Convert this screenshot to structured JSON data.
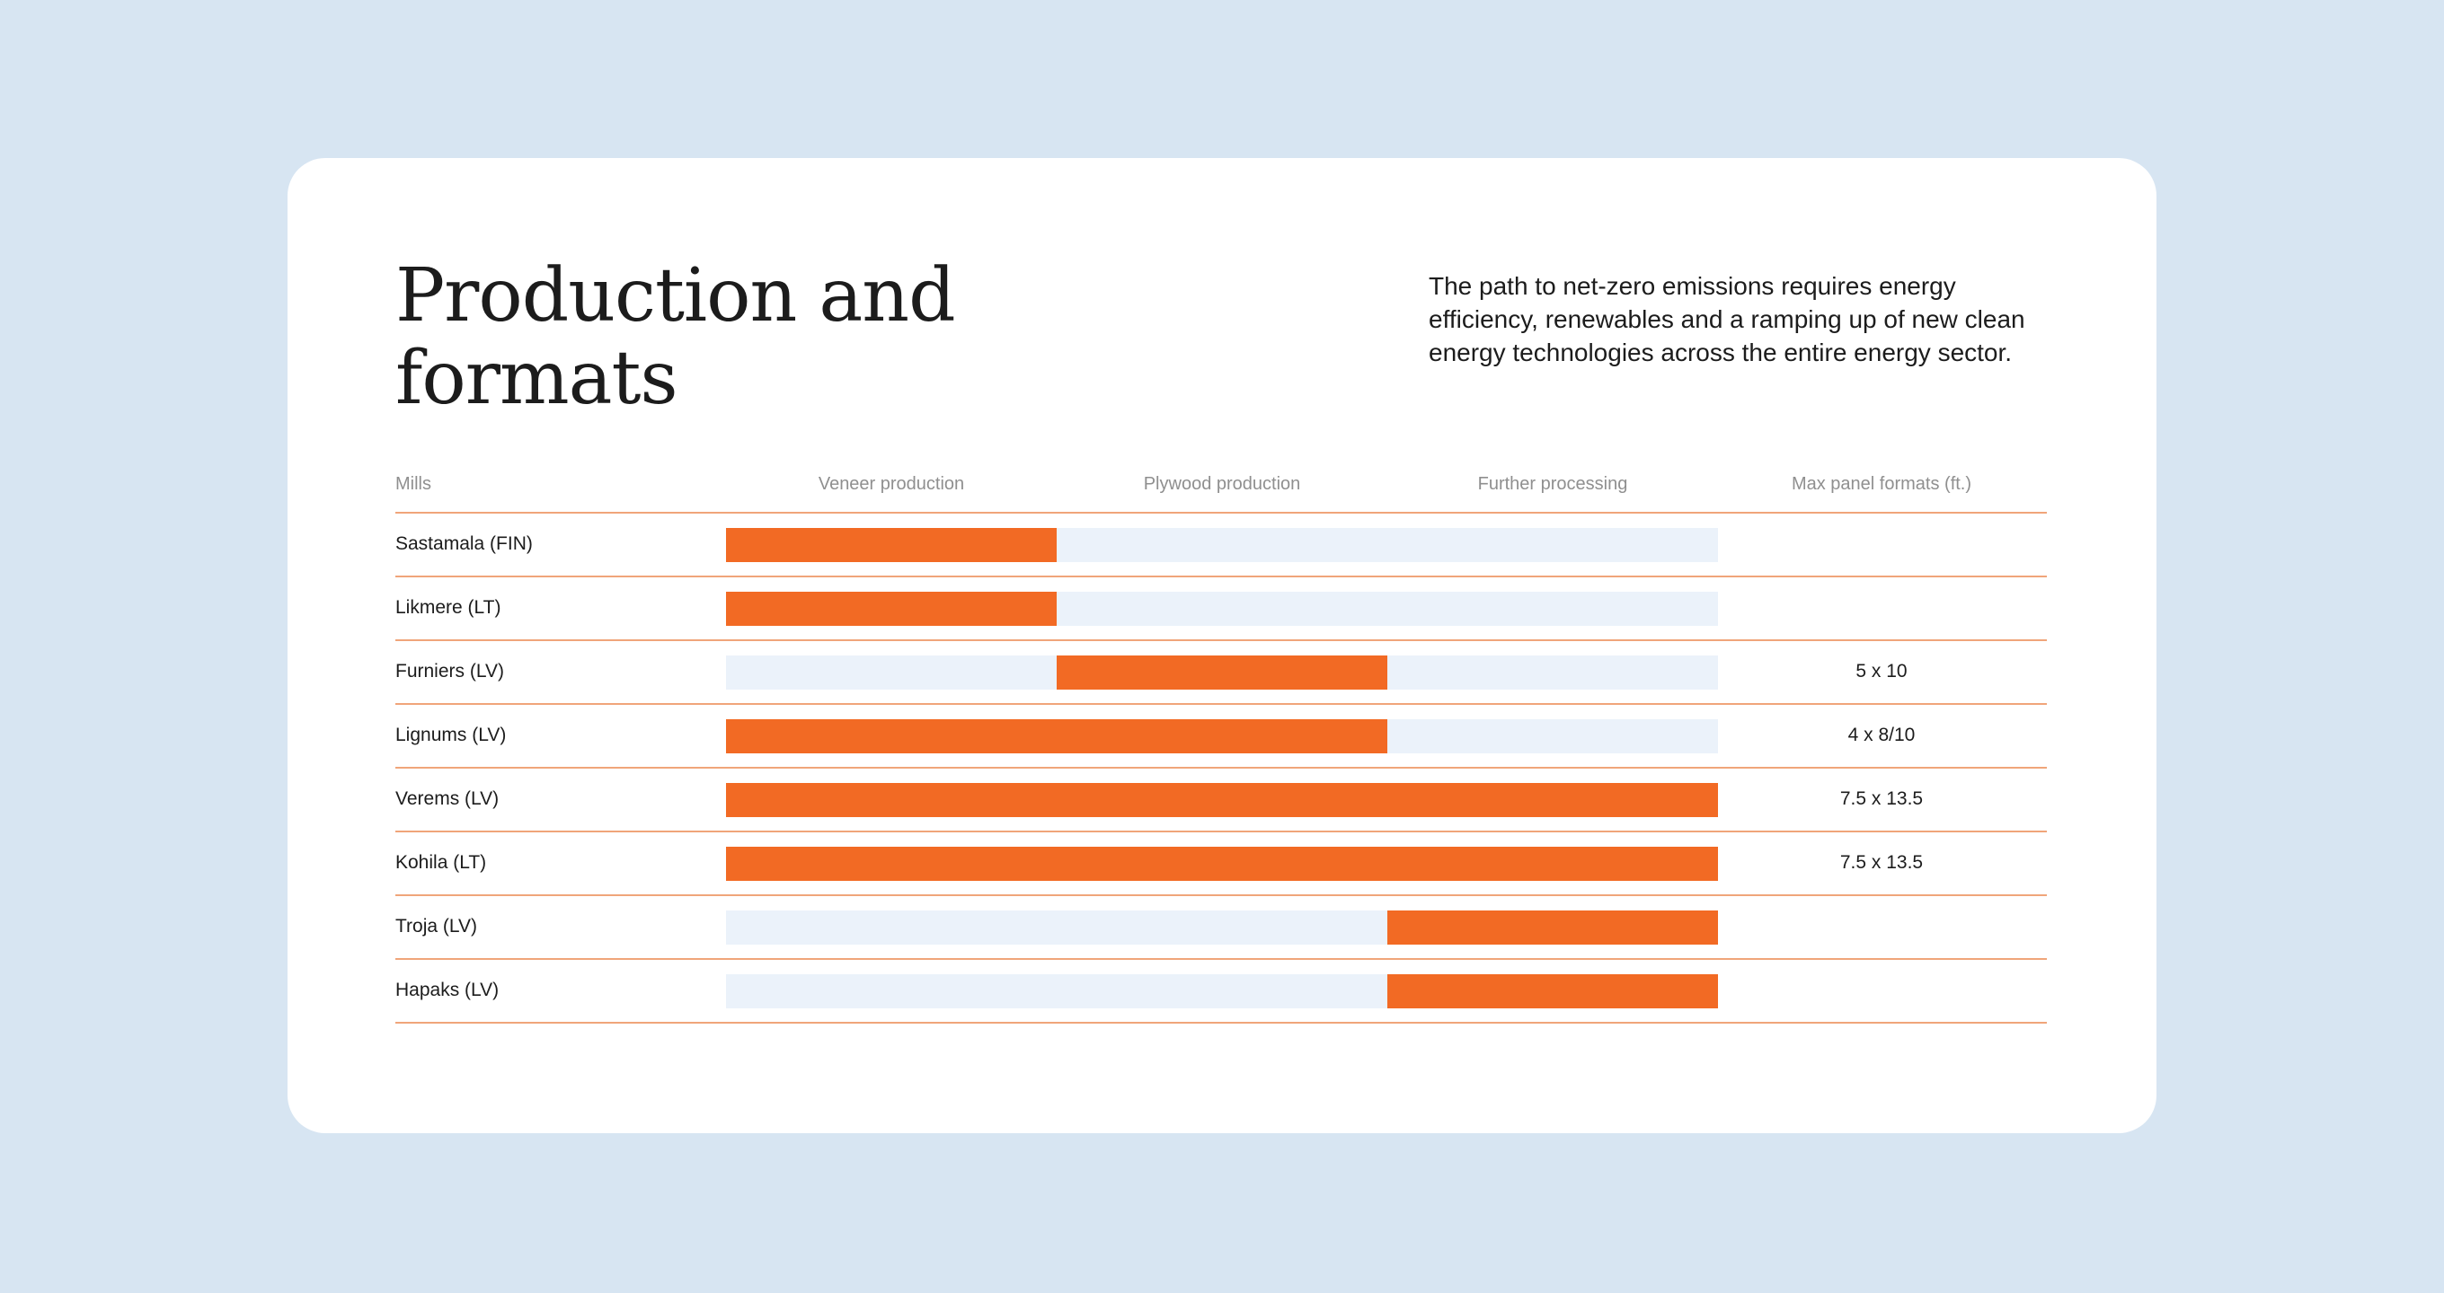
{
  "heading": {
    "title": "Production and formats",
    "description": "The path to net-zero emissions requires energy efficiency, renewables and a ramping up of new clean energy technologies across the entire energy sector."
  },
  "table": {
    "columns": {
      "mills": "Mills",
      "stages": [
        "Veneer production",
        "Plywood production",
        "Further processing"
      ],
      "formats": "Max panel formats (ft.)"
    },
    "colors": {
      "active": "#f26a24",
      "inactive": "#ebf2fa",
      "divider": "#f0a57a"
    },
    "rows": [
      {
        "mill": "Sastamala (FIN)",
        "stages": [
          true,
          false,
          false
        ],
        "format": ""
      },
      {
        "mill": "Likmere (LT)",
        "stages": [
          true,
          false,
          false
        ],
        "format": ""
      },
      {
        "mill": "Furniers (LV)",
        "stages": [
          false,
          true,
          false
        ],
        "format": "5 x 10"
      },
      {
        "mill": "Lignums (LV)",
        "stages": [
          true,
          true,
          false
        ],
        "format": "4 x 8/10"
      },
      {
        "mill": "Verems (LV)",
        "stages": [
          true,
          true,
          true
        ],
        "format": "7.5 x 13.5"
      },
      {
        "mill": "Kohila (LT)",
        "stages": [
          true,
          true,
          true
        ],
        "format": "7.5 x 13.5"
      },
      {
        "mill": "Troja (LV)",
        "stages": [
          false,
          false,
          true
        ],
        "format": ""
      },
      {
        "mill": "Hapaks (LV)",
        "stages": [
          false,
          false,
          true
        ],
        "format": ""
      }
    ]
  }
}
